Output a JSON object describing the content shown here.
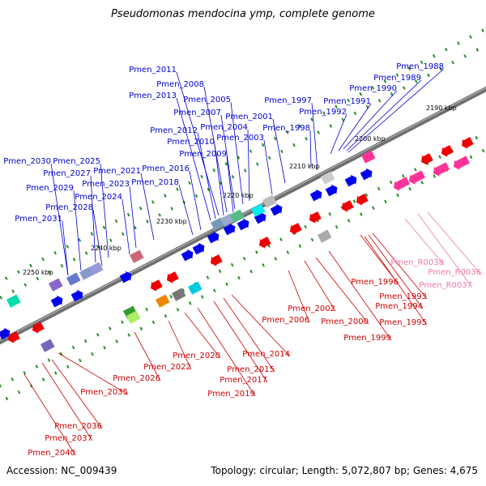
{
  "title": "Pseudomonas mendocina ymp, complete genome",
  "footer": {
    "accession": "Accession: NC_009439",
    "topology": "Topology: circular; Length: 5,072,807 bp; Genes: 4,675"
  },
  "colors": {
    "forward_label": "#0000cc",
    "reverse_label": "#cc0000",
    "rna_label": "#ee77aa",
    "forward_gene": "#0000ee",
    "reverse_gene": "#ee0000",
    "backbone": "#707070",
    "tick": "#228b22"
  },
  "scale_labels": [
    "2190 kbp",
    "2200 kbp",
    "2210 kbp",
    "2220 kbp",
    "2230 kbp",
    "2240 kbp",
    "2250 kbp"
  ],
  "forward_labels": [
    "Pmen_1988",
    "Pmen_1989",
    "Pmen_1990",
    "Pmen_1991",
    "Pmen_1992",
    "Pmen_1997",
    "Pmen_1998",
    "Pmen_2001",
    "Pmen_2003",
    "Pmen_2004",
    "Pmen_2005",
    "Pmen_2007",
    "Pmen_2008",
    "Pmen_2009",
    "Pmen_2010",
    "Pmen_2011",
    "Pmen_2012",
    "Pmen_2013",
    "Pmen_2016",
    "Pmen_2018",
    "Pmen_2021",
    "Pmen_2023",
    "Pmen_2024",
    "Pmen_2025",
    "Pmen_2027",
    "Pmen_2028",
    "Pmen_2029",
    "Pmen_2030",
    "Pmen_2031"
  ],
  "reverse_labels": [
    "Pmen_1993",
    "Pmen_1994",
    "Pmen_1995",
    "Pmen_1996",
    "Pmen_1999",
    "Pmen_2000",
    "Pmen_2002",
    "Pmen_2006",
    "Pmen_2014",
    "Pmen_2015",
    "Pmen_2017",
    "Pmen_2019",
    "Pmen_2020",
    "Pmen_2022",
    "Pmen_2026",
    "Pmen_2035",
    "Pmen_2036",
    "Pmen_2037",
    "Pmen_2040"
  ],
  "rna_labels": [
    "Pmen_R0036",
    "Pmen_R0037",
    "Pmen_R0038"
  ]
}
